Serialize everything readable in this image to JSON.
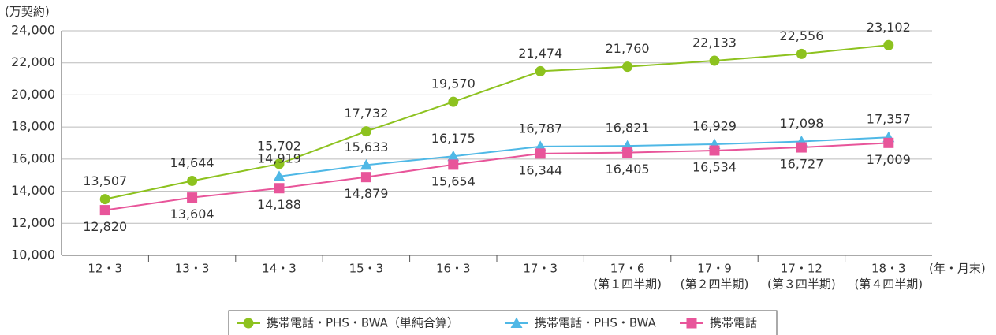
{
  "chart_data": {
    "type": "line",
    "y_axis_label": "(万契約)",
    "x_axis_label": "(年・月末)",
    "categories": [
      "12・3",
      "13・3",
      "14・3",
      "15・3",
      "16・3",
      "17・3",
      "17・6",
      "17・9",
      "17・12",
      "18・3"
    ],
    "category_sublabels": [
      null,
      null,
      null,
      null,
      null,
      null,
      "(第１四半期)",
      "(第２四半期)",
      "(第３四半期)",
      "(第４四半期)"
    ],
    "ylim": [
      10000,
      24000
    ],
    "yticks": [
      {
        "value": 10000,
        "label": "10,000"
      },
      {
        "value": 12000,
        "label": "12,000"
      },
      {
        "value": 14000,
        "label": "14,000"
      },
      {
        "value": 16000,
        "label": "16,000"
      },
      {
        "value": 18000,
        "label": "18,000"
      },
      {
        "value": 20000,
        "label": "20,000"
      },
      {
        "value": 22000,
        "label": "22,000"
      },
      {
        "value": 24000,
        "label": "24,000"
      }
    ],
    "grid": true,
    "legend": "bottom",
    "series": [
      {
        "name": "携帯電話・PHS・BWA（単純合算）",
        "color": "#8dc21f",
        "marker": "circle",
        "label_position": "above",
        "values": [
          13507,
          14644,
          15702,
          17732,
          19570,
          21474,
          21760,
          22133,
          22556,
          23102
        ],
        "value_labels": [
          "13,507",
          "14,644",
          "15,702",
          "17,732",
          "19,570",
          "21,474",
          "21,760",
          "22,133",
          "22,556",
          "23,102"
        ]
      },
      {
        "name": "携帯電話・PHS・BWA",
        "color": "#4fb8e6",
        "marker": "triangle",
        "label_position": "above",
        "values": [
          null,
          null,
          14919,
          15633,
          16175,
          16787,
          16821,
          16929,
          17098,
          17357
        ],
        "value_labels": [
          null,
          null,
          "14,919",
          "15,633",
          "16,175",
          "16,787",
          "16,821",
          "16,929",
          "17,098",
          "17,357"
        ]
      },
      {
        "name": "携帯電話",
        "color": "#e8559a",
        "marker": "square",
        "label_position": "below",
        "values": [
          12820,
          13604,
          14188,
          14879,
          15654,
          16344,
          16405,
          16534,
          16727,
          17009
        ],
        "value_labels": [
          "12,820",
          "13,604",
          "14,188",
          "14,879",
          "15,654",
          "16,344",
          "16,405",
          "16,534",
          "16,727",
          "17,009"
        ]
      }
    ]
  }
}
